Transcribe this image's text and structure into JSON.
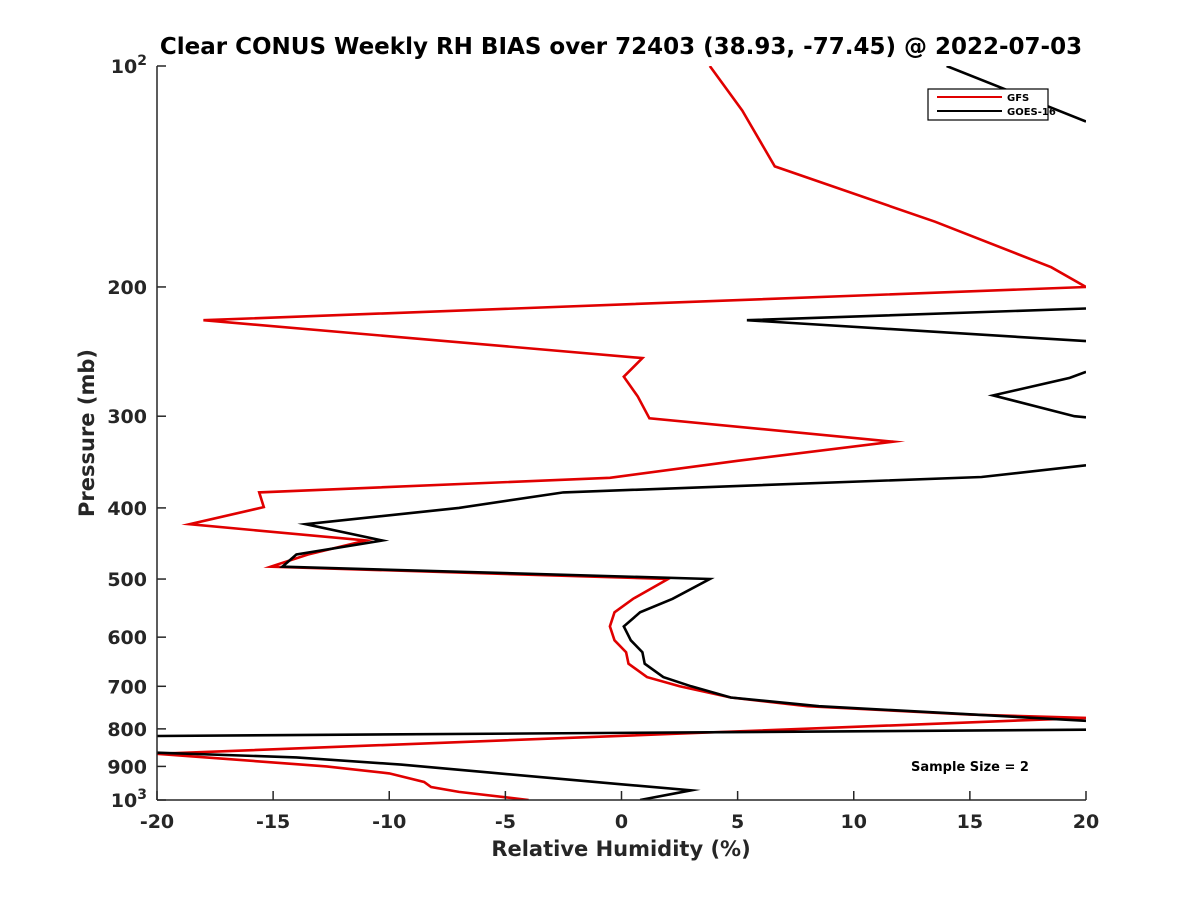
{
  "chart_data": {
    "type": "line",
    "title": "Clear CONUS Weekly RH BIAS over 72403 (38.93, -77.45) @ 2022-07-03",
    "xlabel": "Relative Humidity (%)",
    "ylabel": "Pressure (mb)",
    "xlim": [
      -20,
      20
    ],
    "ylim": [
      100,
      1000
    ],
    "yscale": "log",
    "y_reversed": true,
    "grid": false,
    "legend_position": "top-right",
    "x_ticks": [
      {
        "value": -20,
        "label": "-20"
      },
      {
        "value": -15,
        "label": "-15"
      },
      {
        "value": -10,
        "label": "-10"
      },
      {
        "value": -5,
        "label": "-5"
      },
      {
        "value": 0,
        "label": "0"
      },
      {
        "value": 5,
        "label": "5"
      },
      {
        "value": 10,
        "label": "10"
      },
      {
        "value": 15,
        "label": "15"
      },
      {
        "value": 20,
        "label": "20"
      }
    ],
    "y_ticks": [
      {
        "value": 200,
        "label": "200"
      },
      {
        "value": 300,
        "label": "300"
      },
      {
        "value": 400,
        "label": "400"
      },
      {
        "value": 500,
        "label": "500"
      },
      {
        "value": 600,
        "label": "600"
      },
      {
        "value": 700,
        "label": "700"
      },
      {
        "value": 800,
        "label": "800"
      },
      {
        "value": 900,
        "label": "900"
      }
    ],
    "y_power_ticks": [
      {
        "value": 100,
        "base": "10",
        "exp": "2"
      },
      {
        "value": 1000,
        "base": "10",
        "exp": "3"
      }
    ],
    "series": [
      {
        "name": "GFS",
        "color": "#e00000",
        "points": [
          {
            "x": 3.8,
            "y": 100
          },
          {
            "x": 5.2,
            "y": 115
          },
          {
            "x": 6.6,
            "y": 137
          },
          {
            "x": 13.5,
            "y": 163
          },
          {
            "x": 18.5,
            "y": 188
          },
          {
            "x": 20.0,
            "y": 200
          },
          {
            "x": -18.0,
            "y": 222
          },
          {
            "x": 0.9,
            "y": 250
          },
          {
            "x": 0.1,
            "y": 265
          },
          {
            "x": 0.7,
            "y": 282
          },
          {
            "x": 1.2,
            "y": 302
          },
          {
            "x": 11.7,
            "y": 325
          },
          {
            "x": 5.0,
            "y": 345
          },
          {
            "x": -0.5,
            "y": 364
          },
          {
            "x": -15.6,
            "y": 381
          },
          {
            "x": -15.4,
            "y": 399
          },
          {
            "x": -18.6,
            "y": 421
          },
          {
            "x": -11.0,
            "y": 443
          },
          {
            "x": -13.5,
            "y": 463
          },
          {
            "x": -15.1,
            "y": 481
          },
          {
            "x": 2.0,
            "y": 500
          },
          {
            "x": 0.5,
            "y": 532
          },
          {
            "x": -0.3,
            "y": 555
          },
          {
            "x": -0.5,
            "y": 580
          },
          {
            "x": -0.3,
            "y": 606
          },
          {
            "x": 0.2,
            "y": 629
          },
          {
            "x": 0.3,
            "y": 652
          },
          {
            "x": 1.1,
            "y": 680
          },
          {
            "x": 2.5,
            "y": 700
          },
          {
            "x": 4.7,
            "y": 725
          },
          {
            "x": 8.0,
            "y": 745
          },
          {
            "x": 15.0,
            "y": 765
          },
          {
            "x": 20.0,
            "y": 773
          },
          {
            "x": -20.0,
            "y": 865
          },
          {
            "x": -12.7,
            "y": 900
          },
          {
            "x": -10.0,
            "y": 920
          },
          {
            "x": -8.5,
            "y": 945
          },
          {
            "x": -8.2,
            "y": 960
          },
          {
            "x": -7.0,
            "y": 975
          },
          {
            "x": -4.0,
            "y": 1000
          }
        ]
      },
      {
        "name": "GOES-16",
        "color": "#000000",
        "points": [
          {
            "x": 14.0,
            "y": 100
          },
          {
            "x": 20.0,
            "y": 119
          },
          {
            "x": null,
            "y": null
          },
          {
            "x": 20.0,
            "y": 214
          },
          {
            "x": 5.4,
            "y": 222
          },
          {
            "x": 20.0,
            "y": 237
          },
          {
            "x": null,
            "y": null
          },
          {
            "x": 20.0,
            "y": 261
          },
          {
            "x": 19.3,
            "y": 266
          },
          {
            "x": 16.0,
            "y": 281
          },
          {
            "x": 19.5,
            "y": 300
          },
          {
            "x": 20.0,
            "y": 301
          },
          {
            "x": null,
            "y": null
          },
          {
            "x": 20.0,
            "y": 350
          },
          {
            "x": 15.5,
            "y": 363
          },
          {
            "x": -2.5,
            "y": 381
          },
          {
            "x": -7.0,
            "y": 400
          },
          {
            "x": -13.6,
            "y": 421
          },
          {
            "x": -10.3,
            "y": 443
          },
          {
            "x": -14.0,
            "y": 463
          },
          {
            "x": -14.6,
            "y": 481
          },
          {
            "x": 3.8,
            "y": 500
          },
          {
            "x": 2.2,
            "y": 532
          },
          {
            "x": 0.8,
            "y": 555
          },
          {
            "x": 0.1,
            "y": 580
          },
          {
            "x": 0.4,
            "y": 606
          },
          {
            "x": 0.9,
            "y": 629
          },
          {
            "x": 1.0,
            "y": 652
          },
          {
            "x": 1.8,
            "y": 680
          },
          {
            "x": 3.0,
            "y": 700
          },
          {
            "x": 4.7,
            "y": 725
          },
          {
            "x": 8.5,
            "y": 745
          },
          {
            "x": 15.2,
            "y": 765
          },
          {
            "x": 20.0,
            "y": 780
          },
          {
            "x": null,
            "y": null
          },
          {
            "x": 20.0,
            "y": 802
          },
          {
            "x": -20.0,
            "y": 818
          },
          {
            "x": null,
            "y": null
          },
          {
            "x": -20.0,
            "y": 862
          },
          {
            "x": -14.0,
            "y": 875
          },
          {
            "x": -9.5,
            "y": 895
          },
          {
            "x": -5.6,
            "y": 918
          },
          {
            "x": 0.0,
            "y": 952
          },
          {
            "x": 3.0,
            "y": 970
          },
          {
            "x": 0.8,
            "y": 1000
          }
        ]
      }
    ],
    "annotations": [
      {
        "text": "Sample Size = 2"
      }
    ]
  }
}
